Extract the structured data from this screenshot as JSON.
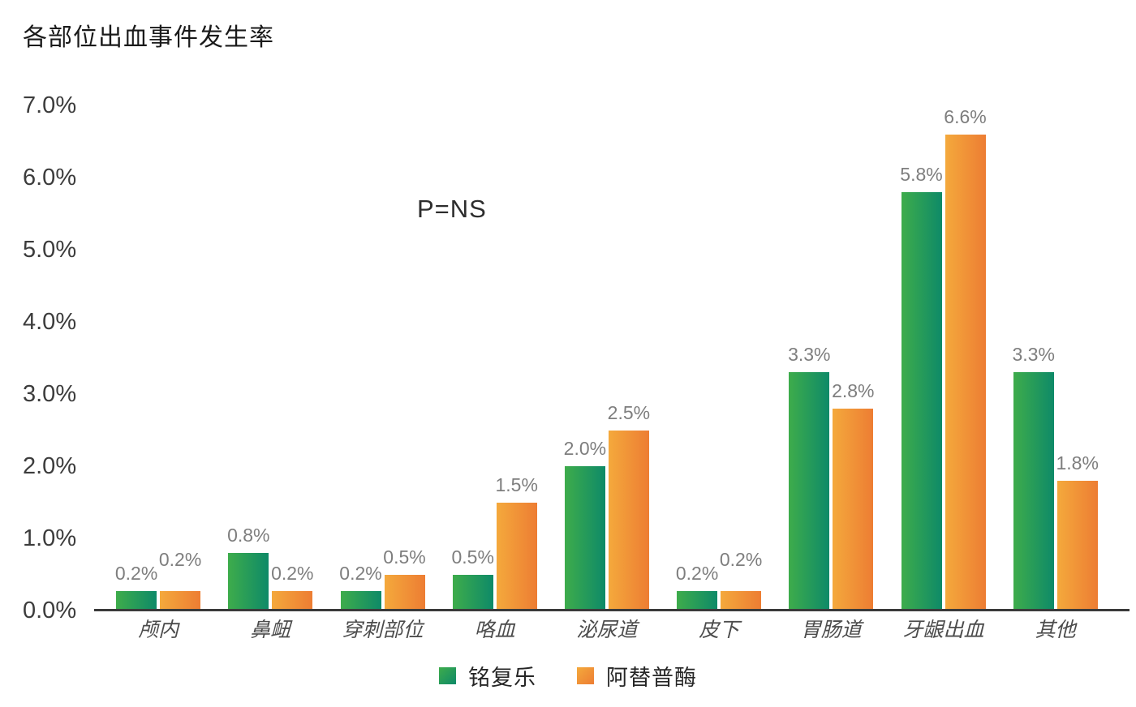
{
  "page": {
    "background_color": "#ffffff"
  },
  "chart_data": {
    "type": "bar",
    "title": "各部位出血事件发生率",
    "annotation": "P=NS",
    "categories": [
      "颅内",
      "鼻衄",
      "穿刺部位",
      "咯血",
      "泌尿道",
      "皮下",
      "胃肠道",
      "牙龈出血",
      "其他"
    ],
    "series": [
      {
        "name": "铭复乐",
        "color_start": "#3EAC4B",
        "color_end": "#0E8A68",
        "values": [
          0.2,
          0.8,
          0.2,
          0.5,
          2.0,
          0.2,
          3.3,
          5.8,
          3.3
        ],
        "value_labels": [
          "0.2%",
          "0.8%",
          "0.2%",
          "0.5%",
          "2.0%",
          "0.2%",
          "3.3%",
          "5.8%",
          "3.3%"
        ]
      },
      {
        "name": "阿替普酶",
        "color_start": "#F4A93C",
        "color_end": "#ED7D33",
        "values": [
          0.2,
          0.2,
          0.5,
          1.5,
          2.5,
          0.2,
          2.8,
          6.6,
          1.8
        ],
        "value_labels": [
          "0.2%",
          "0.2%",
          "0.5%",
          "1.5%",
          "2.5%",
          "0.2%",
          "2.8%",
          "6.6%",
          "1.8%"
        ]
      }
    ],
    "y_ticks": [
      "7.0%",
      "6.0%",
      "5.0%",
      "4.0%",
      "3.0%",
      "2.0%",
      "1.0%",
      "0.0%"
    ],
    "ylim": [
      0,
      7
    ],
    "xlabel": "",
    "ylabel": "",
    "grid": false,
    "legend_position": "bottom",
    "colors": {
      "axis": "#3a3a3a",
      "y_tick_text": "#3c3c3c",
      "value_label_text": "#7e7e7e",
      "category_text": "#4c4c4c",
      "title_text": "#1a1a1a",
      "annotation_text": "#2d2d2d",
      "legend_text": "#262626"
    }
  }
}
